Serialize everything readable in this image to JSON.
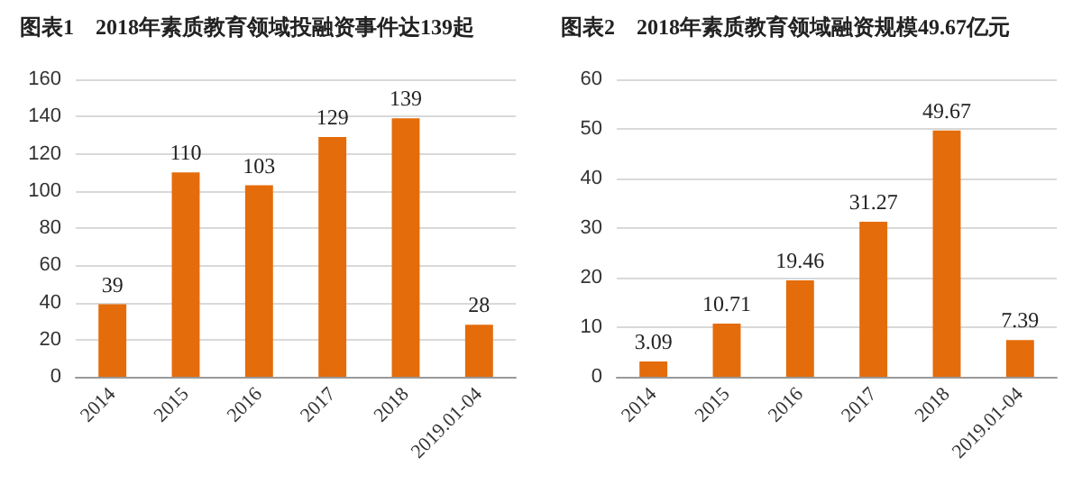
{
  "chart_data": [
    {
      "type": "bar",
      "title": "图表1    2018年素质教育领域投融资事件达139起",
      "categories": [
        "2014",
        "2015",
        "2016",
        "2017",
        "2018",
        "2019.01-04"
      ],
      "values": [
        39,
        110,
        103,
        129,
        139,
        28
      ],
      "color": "#e46c0a",
      "ylim": [
        0,
        160
      ],
      "yticks": [
        0,
        20,
        40,
        60,
        80,
        100,
        120,
        140,
        160
      ],
      "grid": "y",
      "data_labels": true
    },
    {
      "type": "bar",
      "title": "图表2    2018年素质教育领域融资规模49.67亿元",
      "categories": [
        "2014",
        "2015",
        "2016",
        "2017",
        "2018",
        "2019.01-04"
      ],
      "values": [
        3.09,
        10.71,
        19.46,
        31.27,
        49.67,
        7.39
      ],
      "color": "#e46c0a",
      "ylim": [
        0,
        60
      ],
      "yticks": [
        0,
        10,
        20,
        30,
        40,
        50,
        60
      ],
      "grid": "y",
      "data_labels": true
    }
  ]
}
